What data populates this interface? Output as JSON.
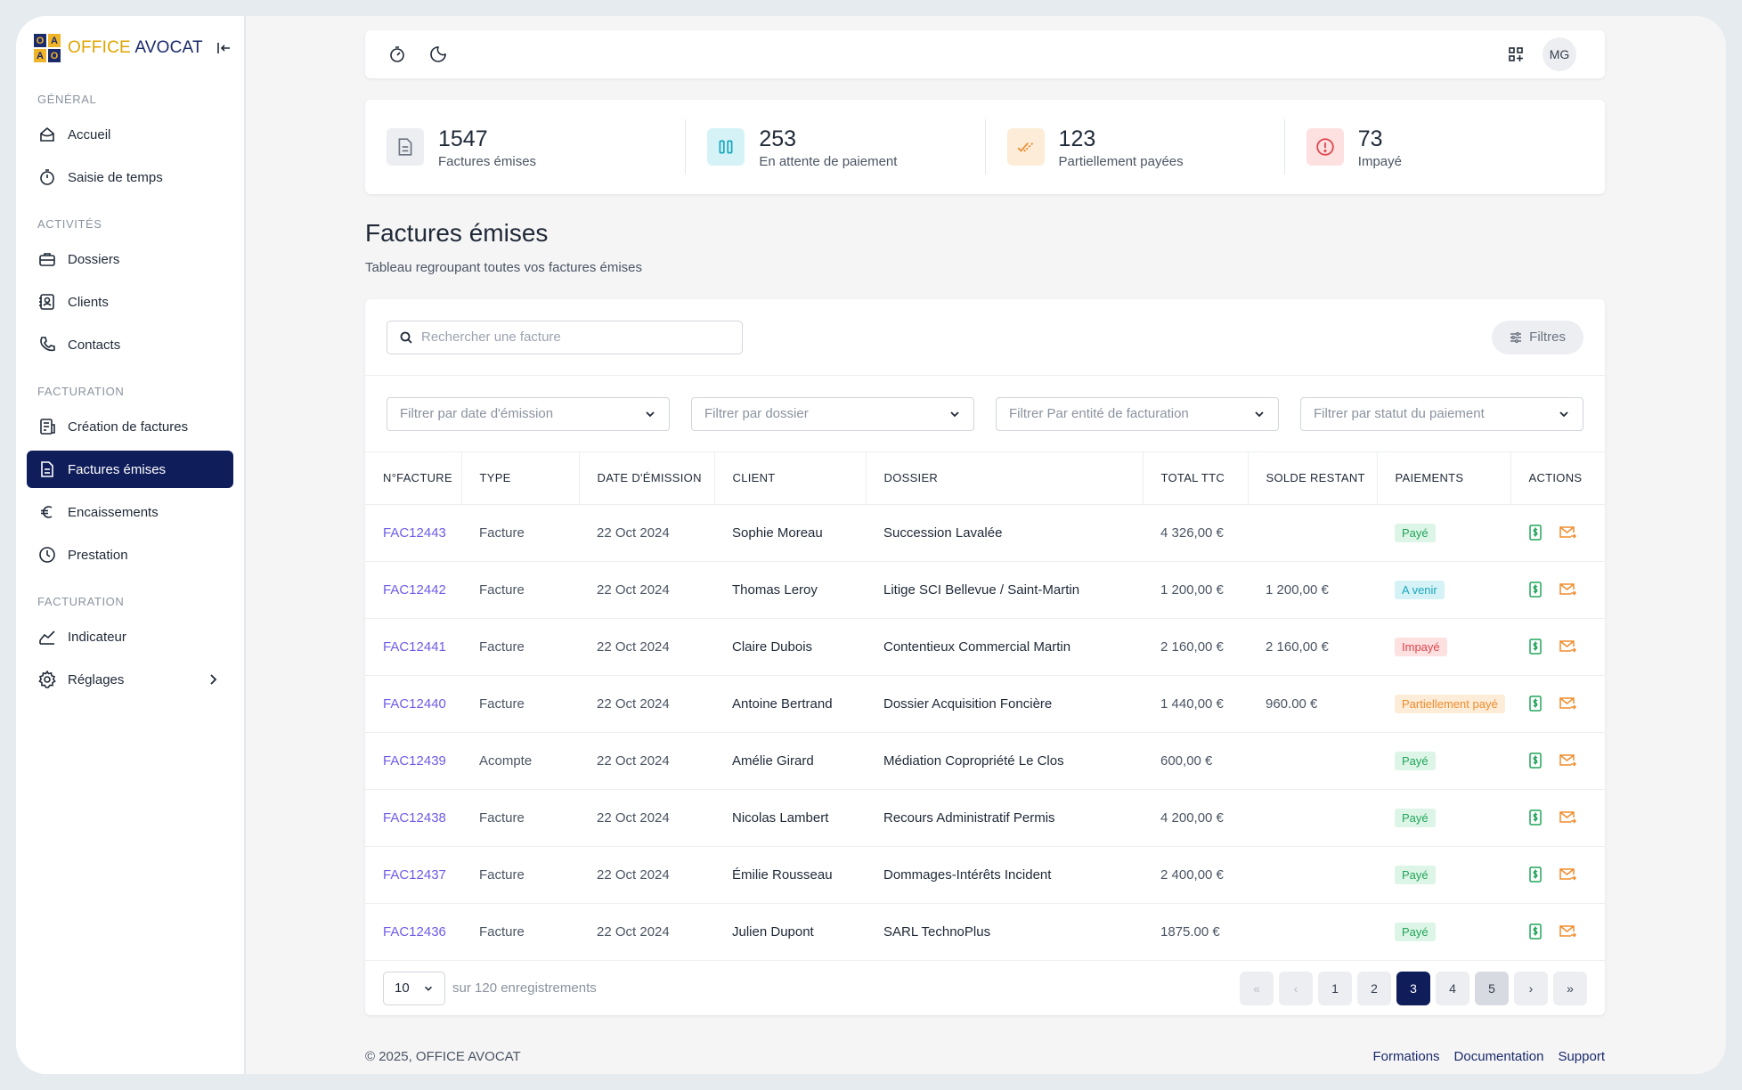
{
  "brand": {
    "logo_letters": [
      "O",
      "A",
      "A",
      "O"
    ],
    "name_part1": "OFFICE",
    "name_part2": "AVOCAT"
  },
  "sidebar": {
    "sections": [
      {
        "title": "GÉNÉRAL",
        "items": [
          {
            "label": "Accueil",
            "icon": "home-icon"
          },
          {
            "label": "Saisie de temps",
            "icon": "stopwatch-icon"
          }
        ]
      },
      {
        "title": "ACTIVITÉS",
        "items": [
          {
            "label": "Dossiers",
            "icon": "briefcase-icon"
          },
          {
            "label": "Clients",
            "icon": "contact-card-icon"
          },
          {
            "label": "Contacts",
            "icon": "phone-icon"
          }
        ]
      },
      {
        "title": "FACTURATION",
        "items": [
          {
            "label": "Création de factures",
            "icon": "invoice-create-icon"
          },
          {
            "label": "Factures émises",
            "icon": "document-icon",
            "active": true
          },
          {
            "label": "Encaissements",
            "icon": "euro-icon"
          },
          {
            "label": "Prestation",
            "icon": "clock-icon"
          }
        ]
      },
      {
        "title": "FACTURATION",
        "items": [
          {
            "label": "Indicateur",
            "icon": "chart-icon"
          },
          {
            "label": "Réglages",
            "icon": "gear-icon"
          }
        ]
      }
    ]
  },
  "topbar": {
    "avatar_initials": "MG"
  },
  "stats": [
    {
      "value": "1547",
      "label": "Factures émises",
      "color": "#6b7280",
      "bg": "#eceef1"
    },
    {
      "value": "253",
      "label": "En attente de paiement",
      "color": "#1aa7bd",
      "bg": "#d5f3f7"
    },
    {
      "value": "123",
      "label": "Partiellement payées",
      "color": "#f08c2c",
      "bg": "#fdecd8"
    },
    {
      "value": "73",
      "label": "Impayé",
      "color": "#e0444c",
      "bg": "#fde0e0"
    }
  ],
  "page": {
    "title": "Factures émises",
    "subtitle": "Tableau regroupant toutes vos factures émises"
  },
  "search": {
    "placeholder": "Rechercher une facture",
    "filters_button": "Filtres"
  },
  "filters": [
    "Filtrer par date d'émission",
    "Filtrer par dossier",
    "Filtrer Par entité de facturation",
    "Filtrer par statut du paiement"
  ],
  "table": {
    "headers": [
      "N°FACTURE",
      "TYPE",
      "DATE D'ÉMISSION",
      "CLIENT",
      "DOSSIER",
      "TOTAL TTC",
      "SOLDE RESTANT",
      "PAIEMENTS",
      "ACTIONS"
    ],
    "rows": [
      {
        "num": "FAC12443",
        "type": "Facture",
        "date": "22 Oct 2024",
        "client": "Sophie Moreau",
        "dossier": "Succession Lavalée",
        "ttc": "4 326,00 €",
        "solde": "",
        "status": "Payé",
        "status_kind": "paye"
      },
      {
        "num": "FAC12442",
        "type": "Facture",
        "date": "22 Oct 2024",
        "client": "Thomas Leroy",
        "dossier": "Litige SCI Bellevue / Saint-Martin",
        "ttc": "1 200,00 €",
        "solde": "1 200,00 €",
        "status": "A venir",
        "status_kind": "avenir"
      },
      {
        "num": "FAC12441",
        "type": "Facture",
        "date": "22 Oct 2024",
        "client": "Claire Dubois",
        "dossier": "Contentieux Commercial Martin",
        "ttc": "2 160,00 €",
        "solde": "2 160,00 €",
        "status": "Impayé",
        "status_kind": "impaye"
      },
      {
        "num": "FAC12440",
        "type": "Facture",
        "date": "22 Oct 2024",
        "client": "Antoine Bertrand",
        "dossier": "Dossier Acquisition Foncière",
        "ttc": "1 440,00 €",
        "solde": "960.00 €",
        "status": "Partiellement payé",
        "status_kind": "partiel"
      },
      {
        "num": "FAC12439",
        "type": "Acompte",
        "date": "22 Oct 2024",
        "client": "Amélie Girard",
        "dossier": "Médiation Copropriété Le Clos",
        "ttc": "600,00 €",
        "solde": "",
        "status": "Payé",
        "status_kind": "paye"
      },
      {
        "num": "FAC12438",
        "type": "Facture",
        "date": "22 Oct 2024",
        "client": "Nicolas Lambert",
        "dossier": "Recours Administratif Permis",
        "ttc": "4 200,00 €",
        "solde": "",
        "status": "Payé",
        "status_kind": "paye"
      },
      {
        "num": "FAC12437",
        "type": "Facture",
        "date": "22 Oct 2024",
        "client": "Émilie Rousseau",
        "dossier": "Dommages-Intérêts Incident",
        "ttc": "2 400,00 €",
        "solde": "",
        "status": "Payé",
        "status_kind": "paye"
      },
      {
        "num": "FAC12436",
        "type": "Facture",
        "date": "22 Oct 2024",
        "client": "Julien Dupont",
        "dossier": "SARL TechnoPlus",
        "ttc": "1875.00 €",
        "solde": "",
        "status": "Payé",
        "status_kind": "paye"
      }
    ]
  },
  "pagination": {
    "page_size": "10",
    "records": "sur 120 enregistrements",
    "pages": [
      "1",
      "2",
      "3",
      "4",
      "5"
    ],
    "current": "3"
  },
  "footer": {
    "copyright": "© 2025, OFFICE AVOCAT",
    "links": [
      "Formations",
      "Documentation",
      "Support"
    ]
  },
  "colors": {
    "primary": "#0f1d5a",
    "link": "#6d5ce8",
    "brand_yellow": "#e0a400",
    "action_green": "#22a55b",
    "action_orange": "#f08c2c"
  }
}
